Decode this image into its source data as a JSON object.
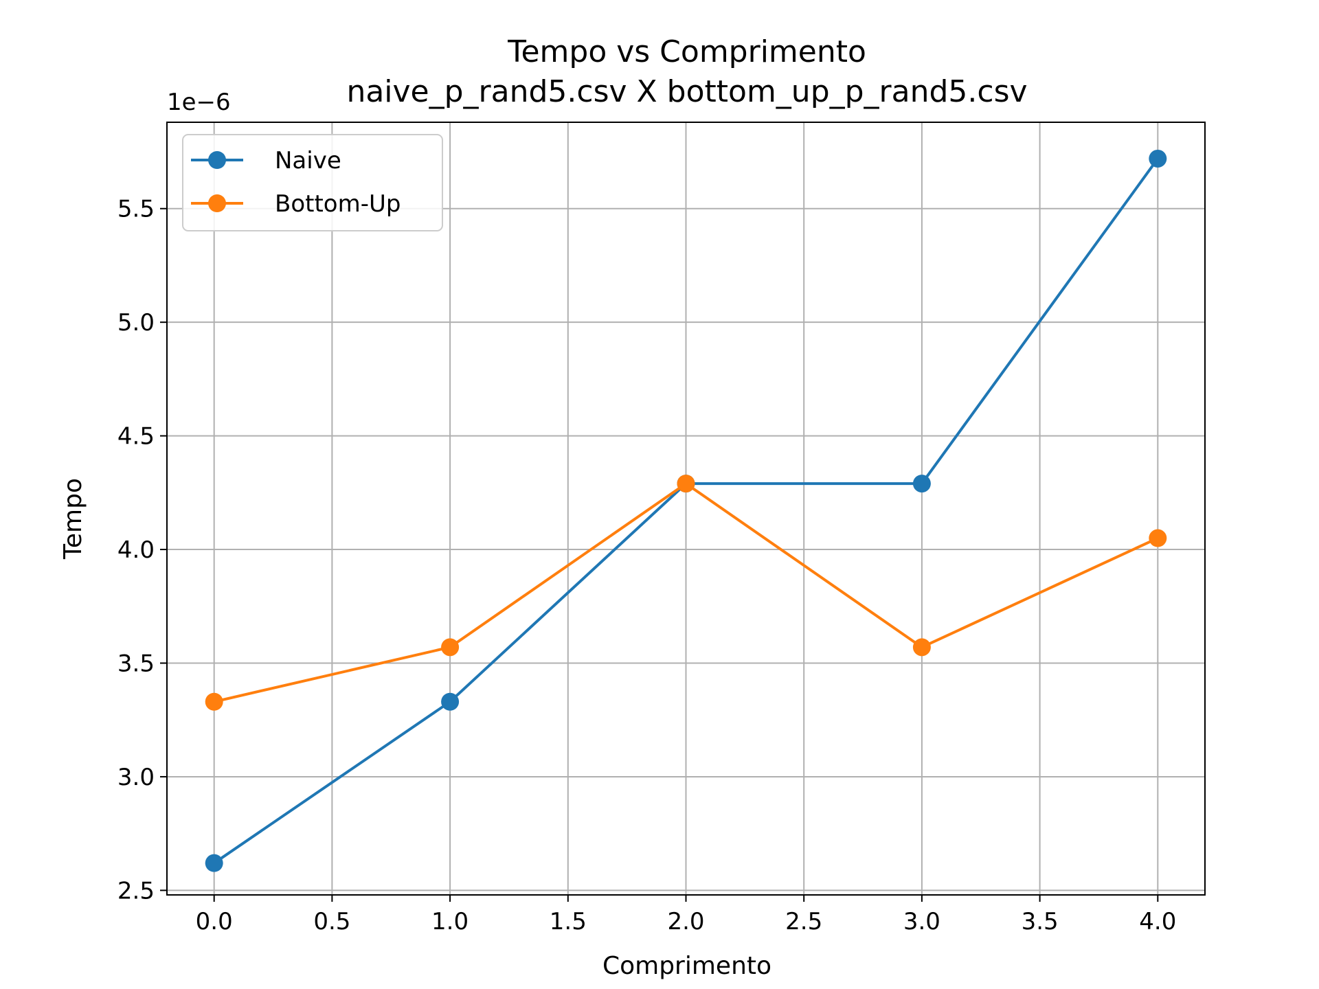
{
  "chart_data": {
    "type": "line",
    "title": "Tempo vs Comprimento",
    "subtitle": "naive_p_rand5.csv X bottom_up_p_rand5.csv",
    "xlabel": "Comprimento",
    "ylabel": "Tempo",
    "y_offset_label": "1e−6",
    "xlim": [
      -0.2,
      4.2
    ],
    "ylim": [
      2.48,
      5.88
    ],
    "x_ticks": [
      0.0,
      0.5,
      1.0,
      1.5,
      2.0,
      2.5,
      3.0,
      3.5,
      4.0
    ],
    "x_tick_labels": [
      "0.0",
      "0.5",
      "1.0",
      "1.5",
      "2.0",
      "2.5",
      "3.0",
      "3.5",
      "4.0"
    ],
    "y_ticks": [
      2.5,
      3.0,
      3.5,
      4.0,
      4.5,
      5.0,
      5.5
    ],
    "y_tick_labels": [
      "2.5",
      "3.0",
      "3.5",
      "4.0",
      "4.5",
      "5.0",
      "5.5"
    ],
    "grid": true,
    "legend_position": "top-left",
    "x": [
      0,
      1,
      2,
      3,
      4
    ],
    "series": [
      {
        "name": "Naive",
        "color": "#1f77b4",
        "values": [
          2.62,
          3.33,
          4.29,
          4.29,
          5.72
        ]
      },
      {
        "name": "Bottom-Up",
        "color": "#ff7f0e",
        "values": [
          3.33,
          3.57,
          4.29,
          3.57,
          4.05
        ]
      }
    ]
  }
}
